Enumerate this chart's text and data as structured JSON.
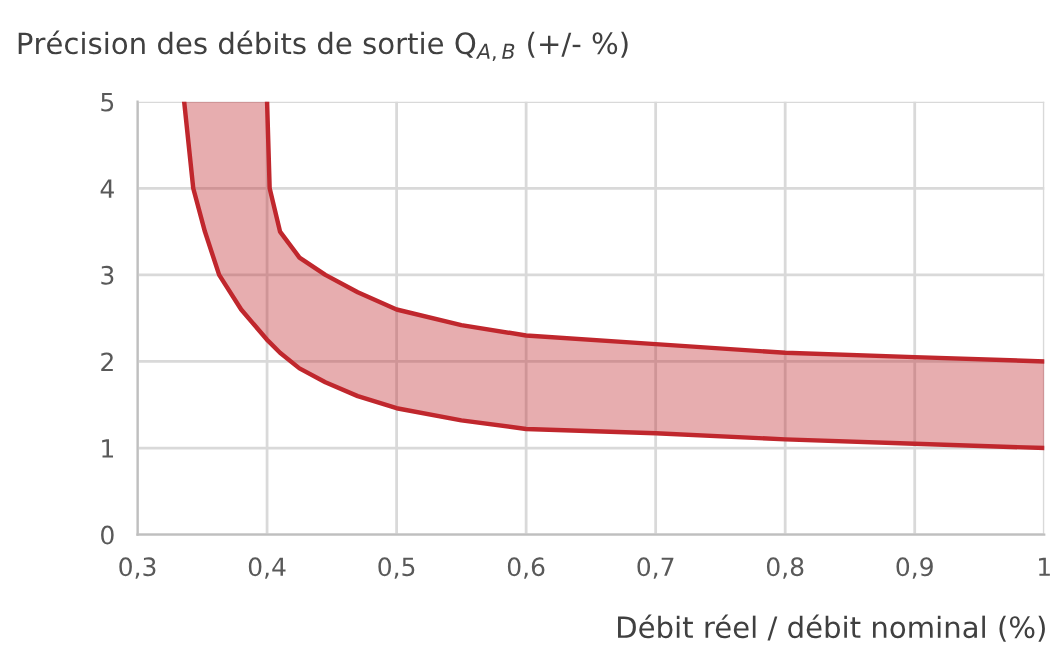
{
  "chart_data": {
    "type": "line",
    "title": "Précision des débits de sortie Q$_{A,B}$ (+/- %)",
    "xlabel": "Débit réel / débit nominal (%)",
    "xlim": [
      0.3,
      1
    ],
    "ylim": [
      0,
      5
    ],
    "xticks": [
      {
        "value": 0.3,
        "label": "0,3"
      },
      {
        "value": 0.4,
        "label": "0,4"
      },
      {
        "value": 0.5,
        "label": "0,5"
      },
      {
        "value": 0.6,
        "label": "0,6"
      },
      {
        "value": 0.7,
        "label": "0,7"
      },
      {
        "value": 0.8,
        "label": "0,8"
      },
      {
        "value": 0.9,
        "label": "0,9"
      },
      1
    ],
    "yticks": [
      0,
      1,
      2,
      3,
      4,
      5
    ],
    "grid": true,
    "marker": "none",
    "line_style": "solid",
    "series": [
      {
        "color": "#c0272d",
        "x": [
          0.336,
          0.343,
          0.352,
          0.363,
          0.38,
          0.4,
          0.402,
          0.41,
          0.425,
          0.445,
          0.47,
          0.5,
          0.55,
          0.6,
          0.7,
          0.8,
          0.9,
          1.0
        ],
        "values": [
          5,
          4,
          3.5,
          3,
          2.6,
          2.25,
          2.22,
          2.1,
          1.92,
          1.76,
          1.6,
          1.46,
          1.32,
          1.22,
          1.17,
          1.1,
          1.05,
          1.0
        ],
        "lower": [
          5,
          4,
          3.5,
          3,
          2.6,
          2.25,
          2.22,
          2.1,
          1.92,
          1.76,
          1.6,
          1.46,
          1.32,
          1.22,
          1.17,
          1.1,
          1.05,
          1.0
        ],
        "upper": [
          5,
          5,
          5,
          5,
          5,
          5,
          4,
          3.5,
          3.2,
          3.0,
          2.8,
          2.6,
          2.42,
          2.3,
          2.2,
          2.1,
          2.05,
          2.0
        ]
      },
      {
        "color": "#c0272d",
        "x": [
          0.4,
          0.402,
          0.41,
          0.425,
          0.445,
          0.47,
          0.5,
          0.55,
          0.6,
          0.7,
          0.8,
          0.9,
          1.0
        ],
        "values": [
          5,
          4,
          3.5,
          3.2,
          3.0,
          2.8,
          2.6,
          2.42,
          2.3,
          2.2,
          2.1,
          2.05,
          2.0
        ]
      }
    ]
  }
}
